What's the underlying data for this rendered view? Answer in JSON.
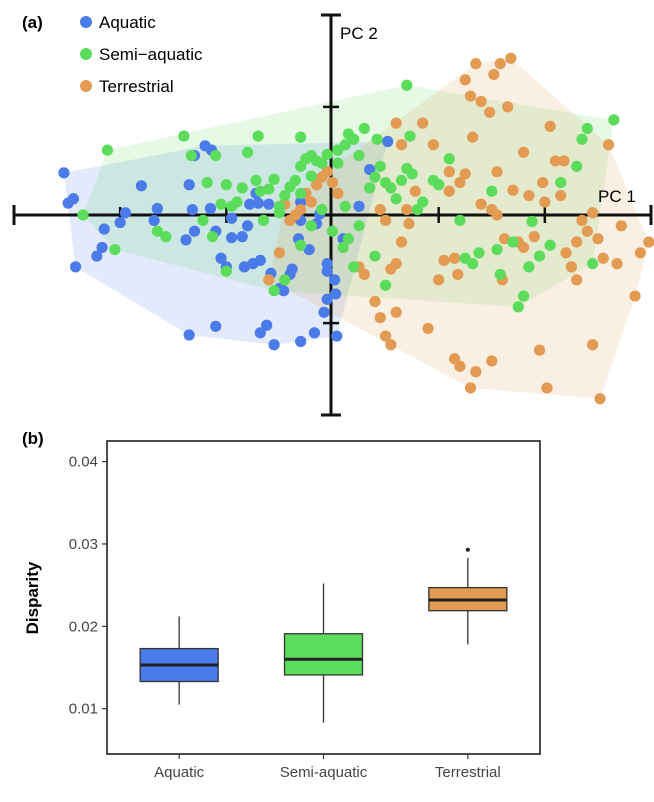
{
  "panel_a_label": "(a)",
  "panel_b_label": "(b)",
  "colors": {
    "Aquatic": "#4a7be8",
    "Semi-aquatic": "#5bdc5b",
    "Terrestrial": "#e39a52"
  },
  "chart_data": [
    {
      "type": "scatter",
      "axis_labels": {
        "pc1": "PC 1",
        "pc2": "PC 2"
      },
      "grid": false,
      "legend_position": "top-left",
      "legend": [
        "Aquatic",
        "Semi−aquatic",
        "Terrestrial"
      ],
      "xlim": [
        -3.0,
        3.0
      ],
      "ylim": [
        -1.85,
        1.85
      ],
      "series": [
        {
          "name": "Aquatic",
          "points": [
            [
              -2.53,
              0.39
            ],
            [
              -2.44,
              0.15
            ],
            [
              -2.49,
              0.11
            ],
            [
              -2.42,
              -0.48
            ],
            [
              -2.17,
              -0.3
            ],
            [
              -2.22,
              -0.38
            ],
            [
              -2.15,
              -0.13
            ],
            [
              -1.95,
              0.02
            ],
            [
              -2.0,
              -0.07
            ],
            [
              -1.8,
              0.27
            ],
            [
              -1.68,
              -0.05
            ],
            [
              -1.65,
              0.06
            ],
            [
              -1.38,
              -0.23
            ],
            [
              -1.3,
              -0.15
            ],
            [
              -1.32,
              0.05
            ],
            [
              -1.35,
              0.28
            ],
            [
              -1.3,
              0.55
            ],
            [
              -1.2,
              0.64
            ],
            [
              -1.15,
              0.06
            ],
            [
              -1.14,
              0.6
            ],
            [
              -1.1,
              -0.15
            ],
            [
              -1.05,
              -0.4
            ],
            [
              -1.0,
              -0.48
            ],
            [
              -0.95,
              -0.03
            ],
            [
              -0.95,
              -0.21
            ],
            [
              -0.85,
              -0.2
            ],
            [
              -0.83,
              -0.48
            ],
            [
              -0.8,
              -0.1
            ],
            [
              -0.75,
              -0.45
            ],
            [
              -0.68,
              -0.42
            ],
            [
              -0.78,
              0.1
            ],
            [
              -0.72,
              0.2
            ],
            [
              -0.6,
              0.1
            ],
            [
              -0.58,
              -0.54
            ],
            [
              -0.5,
              -0.68
            ],
            [
              -0.46,
              -0.7
            ],
            [
              -0.4,
              -0.55
            ],
            [
              -0.38,
              -0.5
            ],
            [
              -0.32,
              -0.22
            ],
            [
              -0.3,
              -0.05
            ],
            [
              -0.3,
              0.12
            ],
            [
              -0.22,
              -0.32
            ],
            [
              -0.15,
              -0.08
            ],
            [
              -0.12,
              0.01
            ],
            [
              -0.05,
              -0.45
            ],
            [
              -0.05,
              -0.52
            ],
            [
              -0.05,
              -0.78
            ],
            [
              0.02,
              -0.6
            ],
            [
              0.03,
              -0.73
            ],
            [
              0.1,
              -0.22
            ],
            [
              0.25,
              0.08
            ],
            [
              0.35,
              0.42
            ],
            [
              0.52,
              0.68
            ],
            [
              -0.08,
              -0.9
            ],
            [
              -1.1,
              -1.03
            ],
            [
              -1.35,
              -1.11
            ],
            [
              -0.55,
              -1.2
            ],
            [
              -0.62,
              -1.02
            ],
            [
              -0.68,
              -1.09
            ],
            [
              -0.3,
              -1.17
            ],
            [
              -0.17,
              -1.09
            ],
            [
              0.04,
              -1.12
            ],
            [
              -0.7,
              0.11
            ]
          ]
        },
        {
          "name": "Semi−aquatic",
          "points": [
            [
              -2.35,
              0.0
            ],
            [
              -2.12,
              0.6
            ],
            [
              -2.05,
              -0.32
            ],
            [
              -1.65,
              -0.15
            ],
            [
              -1.57,
              -0.2
            ],
            [
              -1.4,
              0.73
            ],
            [
              -1.33,
              0.55
            ],
            [
              -1.18,
              0.3
            ],
            [
              -1.1,
              0.55
            ],
            [
              -1.0,
              0.28
            ],
            [
              -1.05,
              0.1
            ],
            [
              -0.95,
              0.08
            ],
            [
              -0.9,
              0.12
            ],
            [
              -0.85,
              0.25
            ],
            [
              -0.72,
              0.32
            ],
            [
              -0.68,
              0.22
            ],
            [
              -0.65,
              -0.05
            ],
            [
              -0.6,
              0.24
            ],
            [
              -0.55,
              0.33
            ],
            [
              -0.5,
              0.02
            ],
            [
              -0.45,
              0.18
            ],
            [
              -0.4,
              0.26
            ],
            [
              -0.35,
              0.32
            ],
            [
              -0.3,
              0.45
            ],
            [
              -0.25,
              0.52
            ],
            [
              -0.2,
              0.55
            ],
            [
              -0.15,
              0.5
            ],
            [
              -0.1,
              0.48
            ],
            [
              -0.05,
              0.56
            ],
            [
              0.05,
              0.6
            ],
            [
              0.12,
              0.65
            ],
            [
              0.15,
              0.75
            ],
            [
              0.2,
              0.7
            ],
            [
              0.25,
              0.55
            ],
            [
              0.3,
              0.8
            ],
            [
              0.35,
              0.25
            ],
            [
              0.4,
              0.35
            ],
            [
              0.45,
              0.45
            ],
            [
              0.5,
              0.3
            ],
            [
              0.55,
              0.25
            ],
            [
              0.6,
              0.15
            ],
            [
              0.65,
              0.32
            ],
            [
              0.7,
              0.43
            ],
            [
              0.75,
              0.38
            ],
            [
              0.8,
              0.05
            ],
            [
              0.85,
              0.12
            ],
            [
              0.95,
              0.32
            ],
            [
              1.0,
              0.28
            ],
            [
              1.1,
              0.52
            ],
            [
              1.2,
              -0.05
            ],
            [
              1.25,
              -0.4
            ],
            [
              1.32,
              -0.45
            ],
            [
              1.38,
              -0.35
            ],
            [
              1.5,
              0.22
            ],
            [
              1.55,
              -0.32
            ],
            [
              1.58,
              -0.55
            ],
            [
              1.7,
              -0.25
            ],
            [
              1.75,
              -0.85
            ],
            [
              1.8,
              -0.75
            ],
            [
              1.85,
              -0.48
            ],
            [
              1.88,
              -0.06
            ],
            [
              1.95,
              -0.38
            ],
            [
              2.05,
              -0.28
            ],
            [
              2.15,
              0.3
            ],
            [
              2.3,
              0.45
            ],
            [
              2.35,
              0.7
            ],
            [
              2.4,
              0.8
            ],
            [
              2.45,
              -0.45
            ],
            [
              2.65,
              0.88
            ],
            [
              -0.55,
              -0.7
            ],
            [
              -0.45,
              -0.6
            ],
            [
              -0.3,
              -0.28
            ],
            [
              -0.2,
              -0.1
            ],
            [
              -0.1,
              0.05
            ],
            [
              0.0,
              -0.15
            ],
            [
              0.1,
              -0.3
            ],
            [
              0.2,
              -0.48
            ],
            [
              0.25,
              -0.1
            ],
            [
              0.4,
              -0.38
            ],
            [
              0.5,
              -0.65
            ],
            [
              -1.0,
              -0.52
            ],
            [
              -1.13,
              -0.2
            ],
            [
              -0.3,
              0.72
            ],
            [
              -0.7,
              0.73
            ],
            [
              -0.5,
              0.08
            ],
            [
              0.42,
              0.7
            ],
            [
              0.7,
              1.2
            ],
            [
              0.73,
              0.73
            ],
            [
              -0.8,
              0.58
            ],
            [
              -1.22,
              -0.05
            ],
            [
              -0.2,
              0.36
            ],
            [
              -0.3,
              0.2
            ],
            [
              0.05,
              0.48
            ],
            [
              0.12,
              0.08
            ],
            [
              0.15,
              -0.22
            ]
          ]
        },
        {
          "name": "Terrestrial",
          "points": [
            [
              0.85,
              0.85
            ],
            [
              0.95,
              0.65
            ],
            [
              1.1,
              0.4
            ],
            [
              1.2,
              0.3
            ],
            [
              1.25,
              0.38
            ],
            [
              1.32,
              0.72
            ],
            [
              1.4,
              0.1
            ],
            [
              1.5,
              0.05
            ],
            [
              1.55,
              0.4
            ],
            [
              1.62,
              -0.22
            ],
            [
              1.7,
              0.23
            ],
            [
              1.75,
              -0.25
            ],
            [
              1.8,
              -0.3
            ],
            [
              1.85,
              0.18
            ],
            [
              1.9,
              -0.2
            ],
            [
              2.0,
              0.12
            ],
            [
              2.05,
              0.82
            ],
            [
              2.1,
              0.5
            ],
            [
              2.15,
              0.18
            ],
            [
              2.18,
              0.5
            ],
            [
              2.2,
              -0.35
            ],
            [
              2.25,
              -0.48
            ],
            [
              2.3,
              -0.25
            ],
            [
              2.35,
              -0.05
            ],
            [
              2.4,
              -0.15
            ],
            [
              2.45,
              0.02
            ],
            [
              2.5,
              -0.22
            ],
            [
              2.55,
              -0.4
            ],
            [
              2.6,
              0.65
            ],
            [
              2.68,
              -0.45
            ],
            [
              2.72,
              -0.1
            ],
            [
              2.85,
              -0.75
            ],
            [
              2.9,
              -0.35
            ],
            [
              2.98,
              -0.25
            ],
            [
              1.55,
              0.0
            ],
            [
              1.65,
              1.0
            ],
            [
              1.8,
              0.58
            ],
            [
              1.98,
              0.3
            ],
            [
              1.05,
              -0.42
            ],
            [
              1.0,
              -0.6
            ],
            [
              1.1,
              0.22
            ],
            [
              1.15,
              -0.4
            ],
            [
              1.18,
              -0.55
            ],
            [
              1.25,
              1.25
            ],
            [
              1.3,
              1.1
            ],
            [
              1.4,
              1.05
            ],
            [
              1.48,
              0.95
            ],
            [
              1.35,
              1.4
            ],
            [
              1.52,
              1.3
            ],
            [
              1.58,
              1.4
            ],
            [
              1.68,
              1.45
            ],
            [
              0.45,
              0.05
            ],
            [
              0.5,
              -0.05
            ],
            [
              0.55,
              -0.5
            ],
            [
              0.6,
              -0.45
            ],
            [
              0.65,
              -0.25
            ],
            [
              0.7,
              0.05
            ],
            [
              0.72,
              -0.08
            ],
            [
              0.78,
              0.22
            ],
            [
              0.65,
              0.65
            ],
            [
              0.6,
              0.85
            ],
            [
              0.3,
              -0.55
            ],
            [
              0.25,
              -0.48
            ],
            [
              0.1,
              -0.3
            ],
            [
              0.05,
              0.2
            ],
            [
              0.0,
              0.3
            ],
            [
              -0.05,
              0.4
            ],
            [
              -0.1,
              0.35
            ],
            [
              -0.15,
              0.28
            ],
            [
              -0.2,
              0.12
            ],
            [
              -0.25,
              0.2
            ],
            [
              -0.3,
              0.05
            ],
            [
              -0.35,
              0.0
            ],
            [
              -0.4,
              -0.05
            ],
            [
              -0.5,
              -0.35
            ],
            [
              0.9,
              -1.05
            ],
            [
              1.15,
              -1.33
            ],
            [
              1.2,
              -1.4
            ],
            [
              1.35,
              -1.45
            ],
            [
              1.5,
              -1.35
            ],
            [
              1.3,
              -1.6
            ],
            [
              1.6,
              -0.6
            ],
            [
              2.02,
              -1.6
            ],
            [
              2.52,
              -1.7
            ],
            [
              2.45,
              -1.2
            ],
            [
              2.3,
              -0.6
            ],
            [
              1.95,
              -1.25
            ],
            [
              -0.45,
              0.1
            ],
            [
              -0.6,
              -0.6
            ],
            [
              0.4,
              -0.8
            ],
            [
              0.45,
              -0.95
            ],
            [
              0.5,
              -1.12
            ],
            [
              0.55,
              -1.2
            ],
            [
              0.6,
              -0.9
            ]
          ]
        }
      ]
    },
    {
      "type": "box",
      "ylabel": "Disparity",
      "categories": [
        "Aquatic",
        "Semi-aquatic",
        "Terrestrial"
      ],
      "ylim": [
        0.0045,
        0.0425
      ],
      "yticks": [
        0.01,
        0.02,
        0.03,
        0.04
      ],
      "ytick_labels": [
        "0.01",
        "0.02",
        "0.03",
        "0.04"
      ],
      "grid": false,
      "boxes": [
        {
          "name": "Aquatic",
          "whisker_low": 0.0105,
          "q1": 0.0133,
          "median": 0.0153,
          "q3": 0.0173,
          "whisker_high": 0.0212,
          "outliers": []
        },
        {
          "name": "Semi-aquatic",
          "whisker_low": 0.0083,
          "q1": 0.0141,
          "median": 0.016,
          "q3": 0.0191,
          "whisker_high": 0.0252,
          "outliers": []
        },
        {
          "name": "Terrestrial",
          "whisker_low": 0.0178,
          "q1": 0.0219,
          "median": 0.0232,
          "q3": 0.0247,
          "whisker_high": 0.0283,
          "outliers": [
            0.0293
          ]
        }
      ]
    }
  ]
}
